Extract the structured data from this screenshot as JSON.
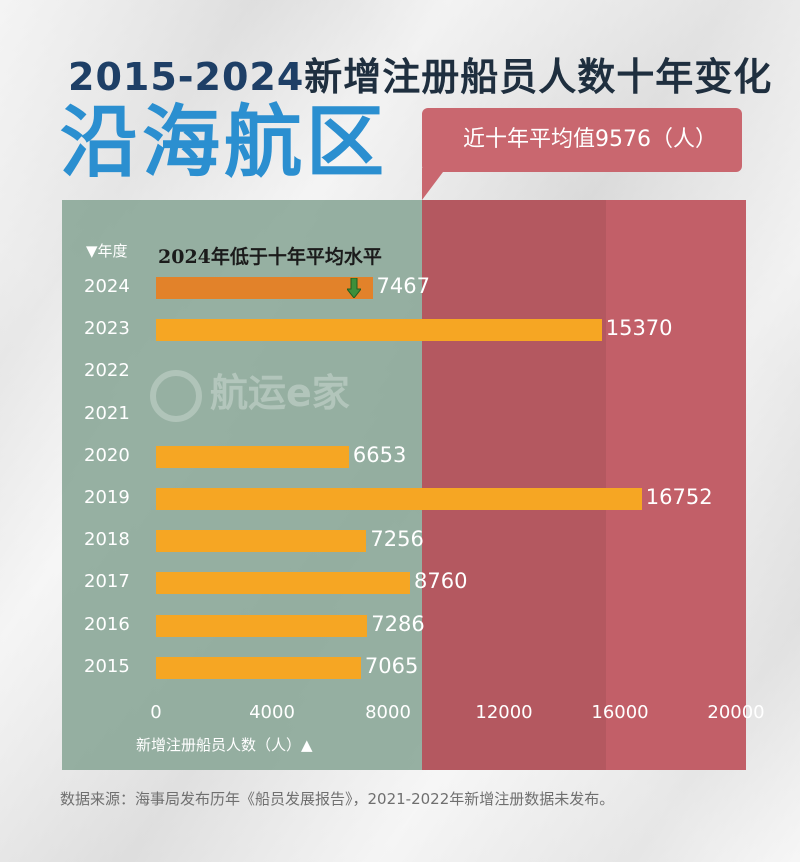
{
  "title": {
    "years": "2015-2024",
    "rest": "新增注册船员人数十年变化"
  },
  "subtitle": "沿海航区",
  "average_callout": "近十年平均值9576（人）",
  "watermark": "航运e家",
  "note": "2024年低于十年平均水平",
  "source": "数据来源：海事局发布历年《船员发展报告》，2021-2022年新增注册数据未发布。",
  "colors": {
    "bar": "#f6a623",
    "bar_highlight": "#e2822a",
    "left_panel": "#8da99a",
    "right_panel": "#c25f68",
    "title_blue": "#2b8fd0"
  },
  "chart_data": {
    "type": "bar",
    "orientation": "horizontal",
    "y_axis_label": "▼年度",
    "x_axis_label": "新增注册船员人数（人）▲",
    "categories": [
      "2024",
      "2023",
      "2022",
      "2021",
      "2020",
      "2019",
      "2018",
      "2017",
      "2016",
      "2015"
    ],
    "values": [
      7467,
      15370,
      null,
      null,
      6653,
      16752,
      7256,
      8760,
      7286,
      7065
    ],
    "value_labels": [
      "7467",
      "15370",
      "",
      "",
      "6653",
      "16752",
      "7256",
      "8760",
      "7286",
      "7065"
    ],
    "highlight_category": "2024",
    "x_ticks": [
      "0",
      "4000",
      "8000",
      "12000",
      "16000",
      "20000"
    ],
    "xlim": [
      0,
      20000
    ],
    "average": 9576,
    "grid": false
  }
}
